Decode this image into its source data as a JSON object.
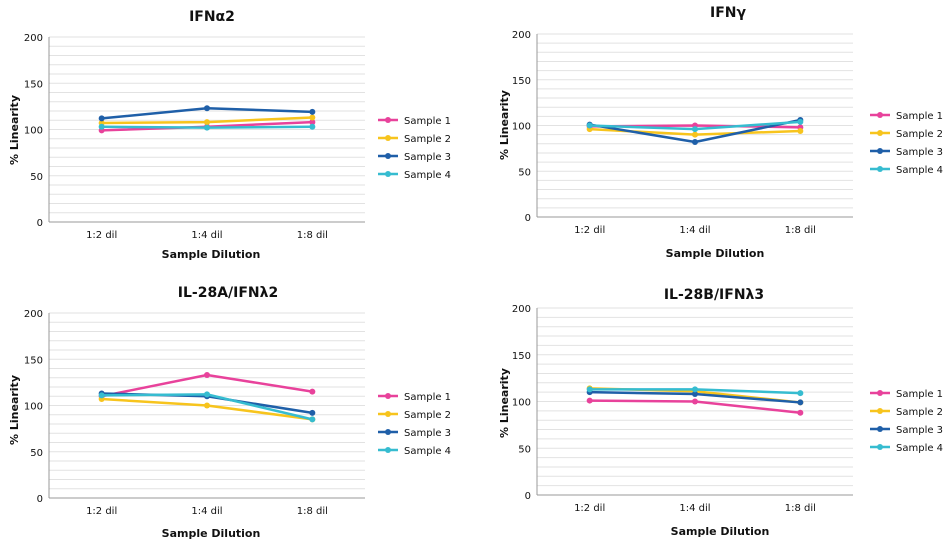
{
  "legend_labels": [
    "Sample 1",
    "Sample 2",
    "Sample 3",
    "Sample 4"
  ],
  "series_colors": [
    "#e8429b",
    "#f7c41d",
    "#1f5fa8",
    "#36bcd0"
  ],
  "axis_label_color": "#111111",
  "gridline_color": "#e2e2e2",
  "chart_data": [
    {
      "type": "line",
      "title": "IFNα2",
      "xlabel": "Sample Dilution",
      "ylabel": "% Linearity",
      "categories": [
        "1:2 dil",
        "1:4 dil",
        "1:8 dil"
      ],
      "ylim": [
        0,
        200
      ],
      "yticks": [
        0,
        50,
        100,
        150,
        200
      ],
      "grid": true,
      "legend_position": "right",
      "series": [
        {
          "name": "Sample 1",
          "values": [
            99,
            103,
            108
          ]
        },
        {
          "name": "Sample 2",
          "values": [
            107,
            108,
            113
          ]
        },
        {
          "name": "Sample 3",
          "values": [
            112,
            123,
            119
          ]
        },
        {
          "name": "Sample 4",
          "values": [
            103,
            102,
            103
          ]
        }
      ]
    },
    {
      "type": "line",
      "title": "IFNγ",
      "xlabel": "Sample Dilution",
      "ylabel": "% Linearity",
      "categories": [
        "1:2 dil",
        "1:4 dil",
        "1:8 dil"
      ],
      "ylim": [
        0,
        200
      ],
      "yticks": [
        0,
        50,
        100,
        150,
        200
      ],
      "grid": true,
      "legend_position": "right",
      "series": [
        {
          "name": "Sample 1",
          "values": [
            99,
            100,
            98
          ]
        },
        {
          "name": "Sample 2",
          "values": [
            96,
            90,
            94
          ]
        },
        {
          "name": "Sample 3",
          "values": [
            101,
            82,
            106
          ]
        },
        {
          "name": "Sample 4",
          "values": [
            100,
            96,
            104
          ]
        }
      ]
    },
    {
      "type": "line",
      "title": "IL-28A/IFNλ2",
      "xlabel": "Sample Dilution",
      "ylabel": "% Linearity",
      "categories": [
        "1:2 dil",
        "1:4 dil",
        "1:8 dil"
      ],
      "ylim": [
        0,
        200
      ],
      "yticks": [
        0,
        50,
        100,
        150,
        200
      ],
      "grid": true,
      "legend_position": "right",
      "series": [
        {
          "name": "Sample 1",
          "values": [
            110,
            133,
            115
          ]
        },
        {
          "name": "Sample 2",
          "values": [
            107,
            100,
            85
          ]
        },
        {
          "name": "Sample 3",
          "values": [
            113,
            110,
            92
          ]
        },
        {
          "name": "Sample 4",
          "values": [
            111,
            112,
            85
          ]
        }
      ]
    },
    {
      "type": "line",
      "title": "IL-28B/IFNλ3",
      "xlabel": "Sample Dilution",
      "ylabel": "% Linearity",
      "categories": [
        "1:2 dil",
        "1:4 dil",
        "1:8 dil"
      ],
      "ylim": [
        0,
        200
      ],
      "yticks": [
        0,
        50,
        100,
        150,
        200
      ],
      "grid": true,
      "legend_position": "right",
      "series": [
        {
          "name": "Sample 1",
          "values": [
            101,
            100,
            88
          ]
        },
        {
          "name": "Sample 2",
          "values": [
            114,
            111,
            99
          ]
        },
        {
          "name": "Sample 3",
          "values": [
            110,
            108,
            99
          ]
        },
        {
          "name": "Sample 4",
          "values": [
            113,
            113,
            109
          ]
        }
      ]
    }
  ]
}
